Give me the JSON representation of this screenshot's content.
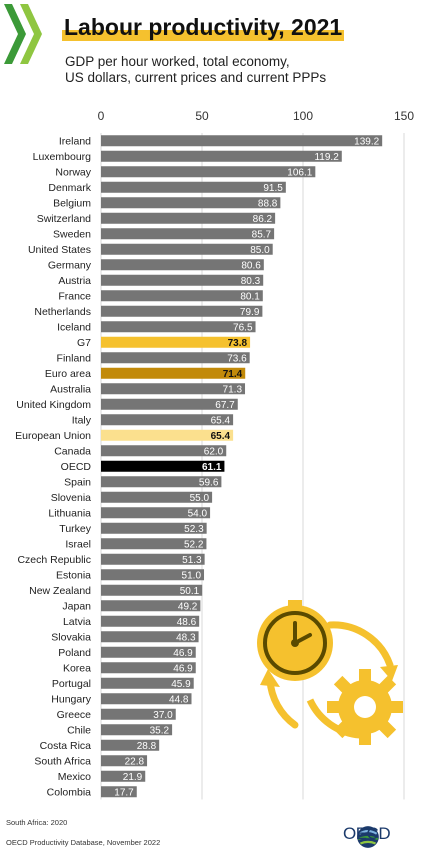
{
  "header": {
    "title": "Labour productivity, 2021",
    "subtitle_line1": "GDP per hour worked, total economy,",
    "subtitle_line2": "US dollars, current prices and current PPPs"
  },
  "footer": {
    "note": "South Africa: 2020",
    "source": "OECD Productivity Database, November 2022",
    "brand": "OECD"
  },
  "colors": {
    "bar_default": "#757575",
    "bar_g7": "#f5c12e",
    "bar_euro_area": "#c28a0a",
    "bar_eu": "#fbe08e",
    "bar_oecd": "#000000",
    "accent_yellow": "#f5c12e"
  },
  "icons": [
    "oecd-logo-stripes",
    "clock-icon",
    "gear-icon",
    "cycle-arrows-icon",
    "globe-icon"
  ],
  "chart_data": {
    "type": "bar",
    "orientation": "horizontal",
    "xlim": [
      0,
      150
    ],
    "xticks": [
      "0",
      "50",
      "100",
      "150"
    ],
    "grid": true,
    "categories": [
      "Ireland",
      "Luxembourg",
      "Norway",
      "Denmark",
      "Belgium",
      "Switzerland",
      "Sweden",
      "United States",
      "Germany",
      "Austria",
      "France",
      "Netherlands",
      "Iceland",
      "G7",
      "Finland",
      "Euro area",
      "Australia",
      "United Kingdom",
      "Italy",
      "European Union",
      "Canada",
      "OECD",
      "Spain",
      "Slovenia",
      "Lithuania",
      "Turkey",
      "Israel",
      "Czech Republic",
      "Estonia",
      "New Zealand",
      "Japan",
      "Latvia",
      "Slovakia",
      "Poland",
      "Korea",
      "Portugal",
      "Hungary",
      "Greece",
      "Chile",
      "Costa Rica",
      "South Africa",
      "Mexico",
      "Colombia"
    ],
    "values": [
      139.2,
      119.2,
      106.1,
      91.5,
      88.8,
      86.2,
      85.7,
      85.0,
      80.6,
      80.3,
      80.1,
      79.9,
      76.5,
      73.8,
      73.6,
      71.4,
      71.3,
      67.7,
      65.4,
      65.4,
      62.0,
      61.1,
      59.6,
      55.0,
      54.0,
      52.3,
      52.2,
      51.3,
      51.0,
      50.1,
      49.2,
      48.6,
      48.3,
      46.9,
      46.9,
      45.9,
      44.8,
      37.0,
      35.2,
      28.8,
      22.8,
      21.9,
      17.7
    ],
    "labels": [
      "139.2",
      "119.2",
      "106.1",
      "91.5",
      "88.8",
      "86.2",
      "85.7",
      "85.0",
      "80.6",
      "80.3",
      "80.1",
      "79.9",
      "76.5",
      "73.8",
      "73.6",
      "71.4",
      "71.3",
      "67.7",
      "65.4",
      "65.4",
      "62.0",
      "61.1",
      "59.6",
      "55.0",
      "54.0",
      "52.3",
      "52.2",
      "51.3",
      "51.0",
      "50.1",
      "49.2",
      "48.6",
      "48.3",
      "46.9",
      "46.9",
      "45.9",
      "44.8",
      "37.0",
      "35.2",
      "28.8",
      "22.8",
      "21.9",
      "17.7"
    ],
    "highlights": {
      "G7": "bar_g7",
      "Euro area": "bar_euro_area",
      "European Union": "bar_eu",
      "OECD": "bar_oecd"
    }
  }
}
